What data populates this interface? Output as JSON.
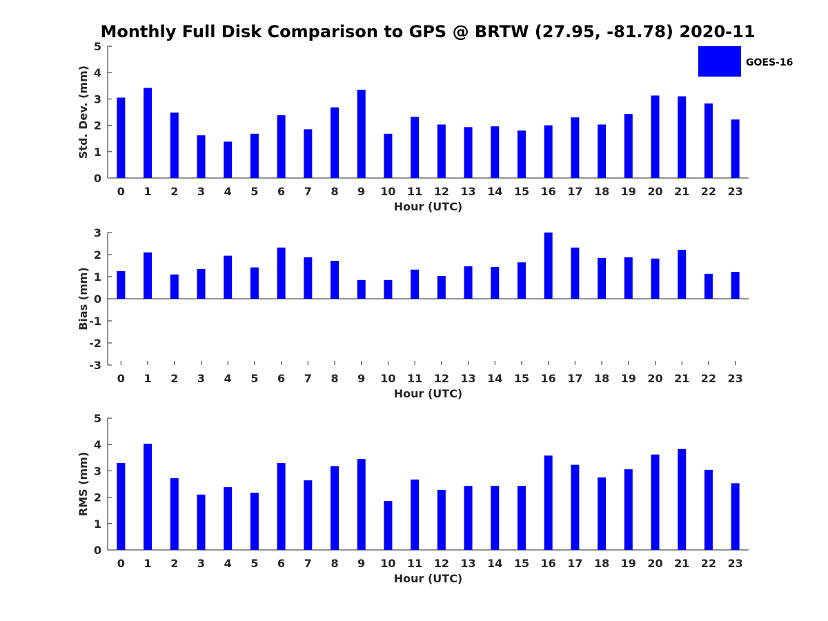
{
  "title": "Monthly Full Disk Comparison to GPS @ BRTW (27.95, -81.78) 2020-11",
  "legend": {
    "label": "GOES-16",
    "color": "#0000ff",
    "placement": "top-right"
  },
  "chart_data": [
    {
      "type": "bar",
      "ylabel": "Std. Dev. (mm)",
      "xlabel": "Hour (UTC)",
      "ylim": [
        0,
        5
      ],
      "yticks": [
        0,
        1,
        2,
        3,
        4,
        5
      ],
      "categories": [
        0,
        1,
        2,
        3,
        4,
        5,
        6,
        7,
        8,
        9,
        10,
        11,
        12,
        13,
        14,
        15,
        16,
        17,
        18,
        19,
        20,
        21,
        22,
        23
      ],
      "series": [
        {
          "values": [
            3.05,
            3.42,
            2.48,
            1.62,
            1.38,
            1.68,
            2.38,
            1.85,
            2.68,
            3.35,
            1.68,
            2.32,
            2.03,
            1.93,
            1.96,
            1.8,
            2.0,
            2.3,
            2.03,
            2.43,
            3.13,
            3.1,
            2.83,
            2.22
          ]
        }
      ]
    },
    {
      "type": "bar",
      "ylabel": "Bias (mm)",
      "xlabel": "Hour (UTC)",
      "ylim": [
        -3,
        3
      ],
      "yticks": [
        -3,
        -2,
        -1,
        0,
        1,
        2,
        3
      ],
      "categories": [
        0,
        1,
        2,
        3,
        4,
        5,
        6,
        7,
        8,
        9,
        10,
        11,
        12,
        13,
        14,
        15,
        16,
        17,
        18,
        19,
        20,
        21,
        22,
        23
      ],
      "series": [
        {
          "values": [
            1.25,
            2.1,
            1.1,
            1.35,
            1.95,
            1.42,
            2.32,
            1.88,
            1.72,
            0.85,
            0.85,
            1.32,
            1.03,
            1.47,
            1.44,
            1.65,
            3.0,
            2.32,
            1.85,
            1.88,
            1.82,
            2.22,
            1.13,
            1.22
          ]
        }
      ]
    },
    {
      "type": "bar",
      "ylabel": "RMS (mm)",
      "xlabel": "Hour (UTC)",
      "ylim": [
        0,
        5
      ],
      "yticks": [
        0,
        1,
        2,
        3,
        4,
        5
      ],
      "categories": [
        0,
        1,
        2,
        3,
        4,
        5,
        6,
        7,
        8,
        9,
        10,
        11,
        12,
        13,
        14,
        15,
        16,
        17,
        18,
        19,
        20,
        21,
        22,
        23
      ],
      "series": [
        {
          "values": [
            3.3,
            4.03,
            2.72,
            2.1,
            2.38,
            2.17,
            3.3,
            2.64,
            3.18,
            3.45,
            1.86,
            2.67,
            2.28,
            2.43,
            2.43,
            2.43,
            3.58,
            3.23,
            2.75,
            3.06,
            3.62,
            3.83,
            3.04,
            2.53
          ]
        }
      ]
    }
  ]
}
